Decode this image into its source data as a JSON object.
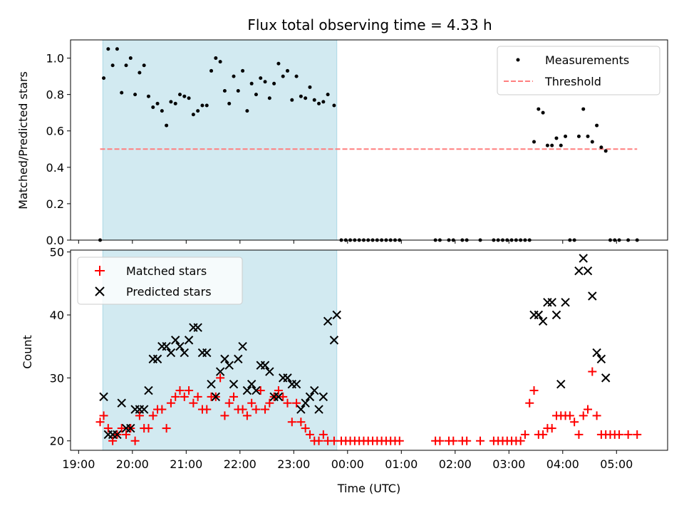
{
  "chart_data": [
    {
      "type": "scatter",
      "title": "Flux total observing time = 4.33 h",
      "xlabel": "",
      "ylabel": "Matched/Predicted stars",
      "ylim": [
        0,
        1.1
      ],
      "xlim_hours": [
        18.85,
        29.95
      ],
      "x_tick_labels": [
        "19:00",
        "20:00",
        "21:00",
        "22:00",
        "23:00",
        "00:00",
        "01:00",
        "02:00",
        "03:00",
        "04:00",
        "05:00"
      ],
      "x_tick_hours": [
        19,
        20,
        21,
        22,
        23,
        24,
        25,
        26,
        27,
        28,
        29
      ],
      "y_tick_labels": [
        "0.0",
        "0.2",
        "0.4",
        "0.6",
        "0.8",
        "1.0"
      ],
      "y_ticks": [
        0,
        0.2,
        0.4,
        0.6,
        0.8,
        1.0
      ],
      "shaded_interval_hours": [
        19.45,
        23.8
      ],
      "shade_color": "#add8e6",
      "legend": {
        "position": "upper right",
        "entries": [
          "Measurements",
          "Threshold"
        ]
      },
      "series": [
        {
          "name": "Measurements",
          "color": "#000000",
          "marker": "dot",
          "x": [
            "19:24",
            "19:28",
            "19:33",
            "19:38",
            "19:43",
            "19:48",
            "19:53",
            "19:58",
            "20:03",
            "20:08",
            "20:13",
            "20:18",
            "20:23",
            "20:28",
            "20:33",
            "20:38",
            "20:43",
            "20:48",
            "20:53",
            "20:58",
            "21:03",
            "21:08",
            "21:13",
            "21:18",
            "21:23",
            "21:28",
            "21:33",
            "21:38",
            "21:43",
            "21:48",
            "21:53",
            "21:58",
            "22:03",
            "22:08",
            "22:13",
            "22:18",
            "22:23",
            "22:28",
            "22:33",
            "22:38",
            "22:43",
            "22:48",
            "22:53",
            "22:58",
            "23:03",
            "23:08",
            "23:13",
            "23:18",
            "23:23",
            "23:28",
            "23:33",
            "23:38",
            "23:45",
            "23:53",
            "23:58",
            "00:03",
            "00:08",
            "00:13",
            "00:18",
            "00:23",
            "00:28",
            "00:33",
            "00:38",
            "00:43",
            "00:48",
            "00:53",
            "00:58",
            "01:38",
            "01:43",
            "01:53",
            "01:58",
            "02:08",
            "02:13",
            "02:28",
            "02:43",
            "02:48",
            "02:53",
            "02:58",
            "03:03",
            "03:08",
            "03:13",
            "03:18",
            "03:23",
            "03:28",
            "03:33",
            "03:38",
            "03:43",
            "03:48",
            "03:53",
            "03:58",
            "04:03",
            "04:08",
            "04:13",
            "04:18",
            "04:23",
            "04:28",
            "04:33",
            "04:38",
            "04:43",
            "04:48",
            "04:53",
            "04:58",
            "05:03",
            "05:13",
            "05:23"
          ],
          "y": [
            0.0,
            0.89,
            1.05,
            0.96,
            1.05,
            0.81,
            0.96,
            1.0,
            0.8,
            0.92,
            0.96,
            0.79,
            0.73,
            0.75,
            0.71,
            0.63,
            0.76,
            0.75,
            0.8,
            0.79,
            0.78,
            0.69,
            0.71,
            0.74,
            0.74,
            0.93,
            1.0,
            0.98,
            0.82,
            0.75,
            0.9,
            0.82,
            0.93,
            0.71,
            0.86,
            0.8,
            0.89,
            0.87,
            0.78,
            0.86,
            0.97,
            0.9,
            0.93,
            0.77,
            0.9,
            0.79,
            0.78,
            0.84,
            0.77,
            0.75,
            0.76,
            0.8,
            0.74,
            0.0,
            0.0,
            0.0,
            0.0,
            0.0,
            0.0,
            0.0,
            0.0,
            0.0,
            0.0,
            0.0,
            0.0,
            0.0,
            0.0,
            0.0,
            0.0,
            0.0,
            0.0,
            0.0,
            0.0,
            0.0,
            0.0,
            0.0,
            0.0,
            0.0,
            0.0,
            0.0,
            0.0,
            0.0,
            0.0,
            0.54,
            0.72,
            0.7,
            0.52,
            0.52,
            0.56,
            0.52,
            0.57,
            0.0,
            0.0,
            0.57,
            0.72,
            0.57,
            0.54,
            0.63,
            0.51,
            0.49,
            0.0,
            0.0,
            0.0,
            0.0,
            0.0
          ]
        },
        {
          "name": "Threshold",
          "color": "#ff7f7f",
          "style": "dashed",
          "x": [
            "19:24",
            "05:23"
          ],
          "y": [
            0.5,
            0.5
          ]
        }
      ]
    },
    {
      "type": "scatter",
      "title": "",
      "xlabel": "Time (UTC)",
      "ylabel": "Count",
      "ylim": [
        18.5,
        50.3
      ],
      "y_tick_labels": [
        "20",
        "30",
        "40",
        "50"
      ],
      "y_ticks": [
        20,
        30,
        40,
        50
      ],
      "legend": {
        "position": "upper left",
        "entries": [
          "Matched stars",
          "Predicted stars"
        ]
      },
      "series": [
        {
          "name": "Matched stars",
          "color": "#ff0000",
          "marker": "plus",
          "x": [
            "19:24",
            "19:28",
            "19:33",
            "19:38",
            "19:43",
            "19:48",
            "19:53",
            "19:58",
            "20:03",
            "20:08",
            "20:13",
            "20:18",
            "20:23",
            "20:28",
            "20:33",
            "20:38",
            "20:43",
            "20:48",
            "20:53",
            "20:58",
            "21:03",
            "21:08",
            "21:13",
            "21:18",
            "21:23",
            "21:28",
            "21:33",
            "21:38",
            "21:43",
            "21:48",
            "21:53",
            "21:58",
            "22:03",
            "22:08",
            "22:13",
            "22:18",
            "22:23",
            "22:28",
            "22:33",
            "22:38",
            "22:43",
            "22:48",
            "22:53",
            "22:58",
            "23:03",
            "23:08",
            "23:13",
            "23:18",
            "23:23",
            "23:28",
            "23:33",
            "23:38",
            "23:45",
            "23:53",
            "23:58",
            "00:03",
            "00:08",
            "00:13",
            "00:18",
            "00:23",
            "00:28",
            "00:33",
            "00:38",
            "00:43",
            "00:48",
            "00:53",
            "00:58",
            "01:38",
            "01:43",
            "01:53",
            "01:58",
            "02:08",
            "02:13",
            "02:28",
            "02:43",
            "02:48",
            "02:53",
            "02:58",
            "03:03",
            "03:08",
            "03:13",
            "03:18",
            "03:23",
            "03:28",
            "03:33",
            "03:38",
            "03:43",
            "03:48",
            "03:53",
            "03:58",
            "04:03",
            "04:08",
            "04:13",
            "04:18",
            "04:23",
            "04:28",
            "04:33",
            "04:38",
            "04:43",
            "04:48",
            "04:53",
            "04:58",
            "05:03",
            "05:13",
            "05:23"
          ],
          "y": [
            23,
            24,
            22,
            20,
            21,
            22,
            21,
            22,
            20,
            24,
            22,
            22,
            24,
            25,
            25,
            22,
            26,
            27,
            28,
            27,
            28,
            26,
            27,
            25,
            25,
            27,
            27,
            30,
            24,
            26,
            27,
            25,
            25,
            24,
            26,
            25,
            28,
            25,
            26,
            27,
            28,
            27,
            26,
            23,
            26,
            23,
            22,
            21,
            20,
            20,
            21,
            20,
            20,
            20,
            20,
            20,
            20,
            20,
            20,
            20,
            20,
            20,
            20,
            20,
            20,
            20,
            20,
            20,
            20,
            20,
            20,
            20,
            20,
            20,
            20,
            20,
            20,
            20,
            20,
            20,
            20,
            21,
            26,
            28,
            21,
            21,
            22,
            22,
            24,
            24,
            24,
            24,
            23,
            21,
            24,
            25,
            31,
            24,
            21,
            21,
            21,
            21,
            21,
            21,
            21
          ]
        },
        {
          "name": "Predicted stars",
          "color": "#000000",
          "marker": "x",
          "x": [
            "19:28",
            "19:33",
            "19:38",
            "19:43",
            "19:48",
            "19:53",
            "19:58",
            "20:03",
            "20:08",
            "20:13",
            "20:18",
            "20:23",
            "20:28",
            "20:33",
            "20:38",
            "20:43",
            "20:48",
            "20:53",
            "20:58",
            "21:03",
            "21:08",
            "21:13",
            "21:18",
            "21:23",
            "21:28",
            "21:33",
            "21:38",
            "21:43",
            "21:48",
            "21:53",
            "21:58",
            "22:03",
            "22:08",
            "22:13",
            "22:18",
            "22:23",
            "22:28",
            "22:33",
            "22:38",
            "22:43",
            "22:48",
            "22:53",
            "22:58",
            "23:03",
            "23:08",
            "23:13",
            "23:18",
            "23:23",
            "23:28",
            "23:33",
            "23:38",
            "23:45",
            "23:48",
            "03:28",
            "03:33",
            "03:38",
            "03:43",
            "03:48",
            "03:53",
            "03:58",
            "04:03",
            "04:18",
            "04:23",
            "04:28",
            "04:33",
            "04:38",
            "04:43",
            "04:48"
          ],
          "y": [
            27,
            21,
            21,
            21,
            26,
            22,
            22,
            25,
            25,
            25,
            28,
            33,
            33,
            35,
            35,
            34,
            36,
            35,
            34,
            36,
            38,
            38,
            34,
            34,
            29,
            27,
            31,
            33,
            32,
            29,
            33,
            35,
            28,
            29,
            28,
            32,
            32,
            31,
            27,
            27,
            30,
            30,
            29,
            29,
            25,
            26,
            27,
            28,
            25,
            27,
            39,
            36,
            40,
            40,
            40,
            39,
            42,
            42,
            40,
            29,
            42,
            47,
            49,
            47,
            43,
            34,
            33,
            30
          ]
        }
      ]
    }
  ]
}
